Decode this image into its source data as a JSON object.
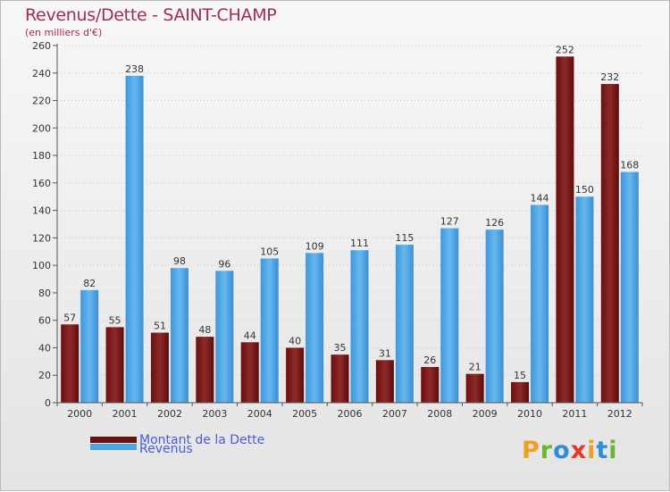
{
  "header": {
    "title": "Revenus/Dette - SAINT-CHAMP",
    "subtitle": "(en milliers d'€)"
  },
  "legend": {
    "items": [
      {
        "label": "Montant de la Dette",
        "color": "#7a1515"
      },
      {
        "label": "Revenus",
        "color": "#4ba3e6"
      }
    ]
  },
  "logo": {
    "text": "Proxiti"
  },
  "chart_data": {
    "type": "bar",
    "title": "Revenus/Dette - SAINT-CHAMP",
    "subtitle": "(en milliers d'€)",
    "categories": [
      "2000",
      "2001",
      "2002",
      "2003",
      "2004",
      "2005",
      "2006",
      "2007",
      "2008",
      "2009",
      "2010",
      "2011",
      "2012"
    ],
    "series": [
      {
        "name": "Montant de la Dette",
        "color": "#7a1515",
        "values": [
          57,
          55,
          51,
          48,
          44,
          40,
          35,
          31,
          26,
          21,
          15,
          252,
          232
        ]
      },
      {
        "name": "Revenus",
        "color": "#4ba3e6",
        "values": [
          82,
          238,
          98,
          96,
          105,
          109,
          111,
          115,
          127,
          126,
          144,
          150,
          168
        ]
      }
    ],
    "ylim": [
      0,
      260
    ],
    "yticks": [
      0,
      20,
      40,
      60,
      80,
      100,
      120,
      140,
      160,
      180,
      200,
      220,
      240,
      260
    ],
    "grid": true,
    "legend_position": "bottom-left"
  }
}
